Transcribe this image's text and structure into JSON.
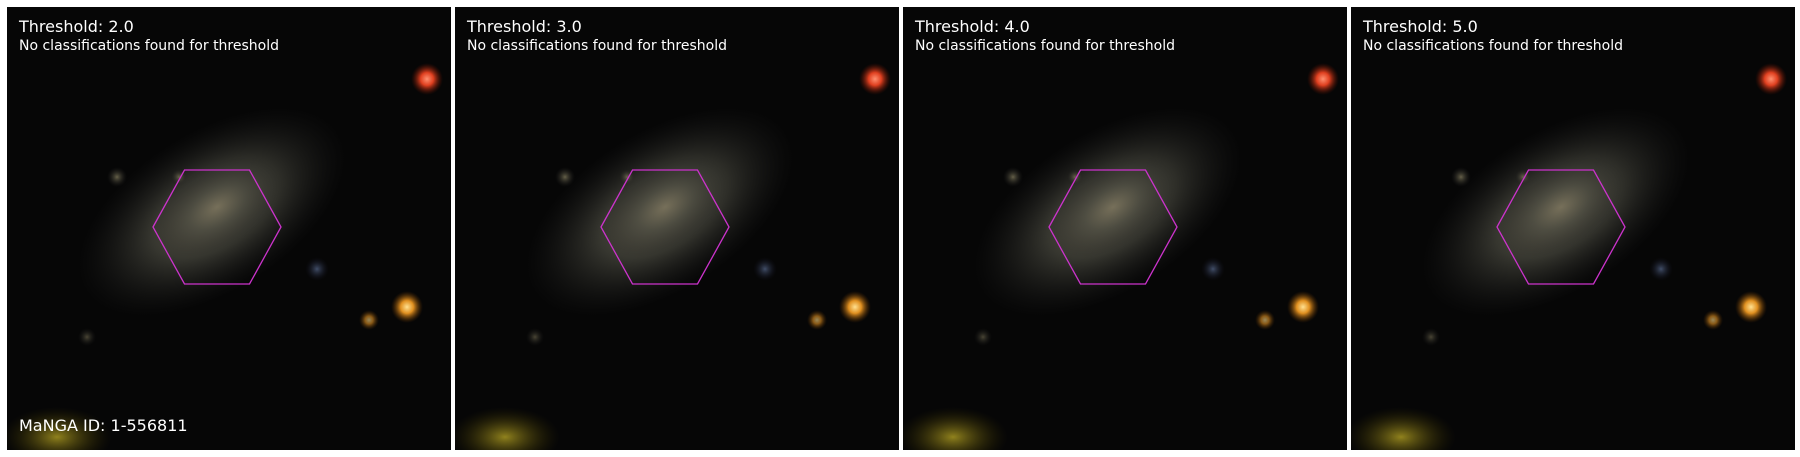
{
  "panels": [
    {
      "title": "Threshold: 2.0",
      "subtitle": "No classifications found for threshold"
    },
    {
      "title": "Threshold: 3.0",
      "subtitle": "No classifications found for threshold"
    },
    {
      "title": "Threshold: 4.0",
      "subtitle": "No classifications found for threshold"
    },
    {
      "title": "Threshold: 5.0",
      "subtitle": "No classifications found for threshold"
    }
  ],
  "manga_id": "MaNGA ID: 1-556811",
  "colors": {
    "hexagon": "#cc33cc",
    "background": "#050505",
    "text": "#ffffff"
  }
}
